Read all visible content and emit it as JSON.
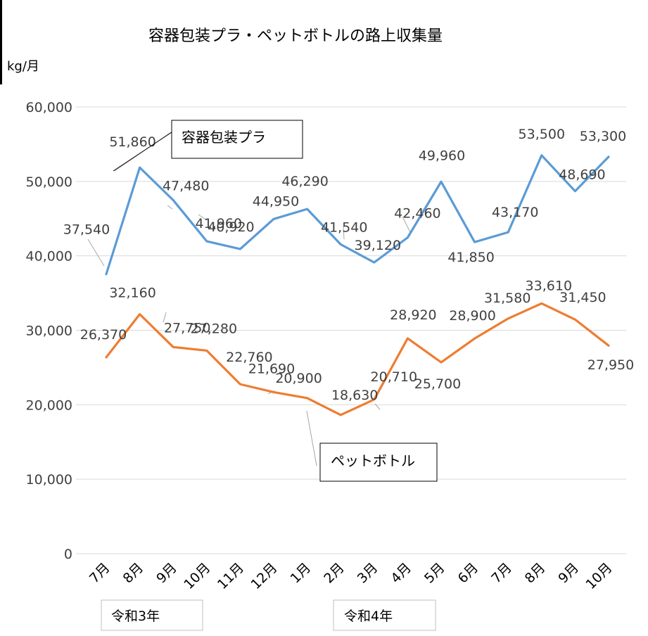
{
  "chart_data": {
    "type": "line",
    "title": "容器包装プラ・ペットボトルの路上収集量",
    "ylabel": "kg/月",
    "ylim": [
      0,
      60000
    ],
    "yticks": [
      "0",
      "10,000",
      "20,000",
      "30,000",
      "40,000",
      "50,000",
      "60,000"
    ],
    "categories": [
      "7月",
      "8月",
      "9月",
      "10月",
      "11月",
      "12月",
      "1月",
      "2月",
      "3月",
      "4月",
      "5月",
      "6月",
      "7月",
      "8月",
      "9月",
      "10月"
    ],
    "year_groups": [
      {
        "label": "令和3年"
      },
      {
        "label": "令和4年"
      }
    ],
    "grid": "horizontal",
    "series": [
      {
        "name": "容器包装プラ",
        "color": "#5b9bd5",
        "values": [
          37540,
          51860,
          47480,
          41960,
          40920,
          44950,
          46290,
          41540,
          39120,
          42460,
          49960,
          41850,
          43170,
          53500,
          48690,
          53300
        ],
        "labels": [
          "37,540",
          "51,860",
          "47,480",
          "41,960",
          "40,920",
          "44,950",
          "46,290",
          "41,540",
          "39,120",
          "42,460",
          "49,960",
          "41,850",
          "43,170",
          "53,500",
          "48,690",
          "53,300"
        ]
      },
      {
        "name": "ペットボトル",
        "color": "#ed7d31",
        "values": [
          26370,
          32160,
          27750,
          27280,
          22760,
          21690,
          20900,
          18630,
          20710,
          28920,
          25700,
          28900,
          31580,
          33610,
          31450,
          27950
        ],
        "labels": [
          "26,370",
          "32,160",
          "27,750",
          "27,280",
          "22,760",
          "21,690",
          "20,900",
          "18,630",
          "20,710",
          "28,920",
          "25,700",
          "28,900",
          "31,580",
          "33,610",
          "31,450",
          "27,950"
        ]
      }
    ]
  }
}
